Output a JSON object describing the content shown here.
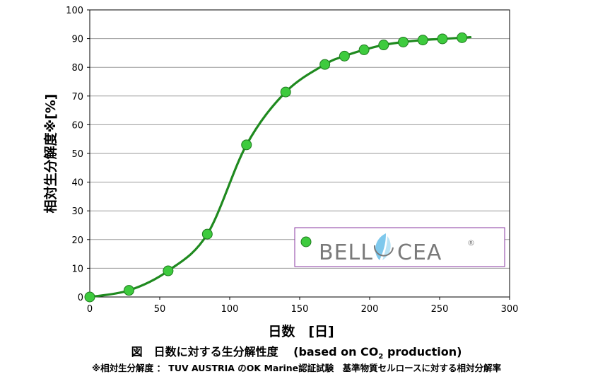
{
  "chart_data": {
    "type": "line",
    "xlabel": "日数　[日]",
    "ylabel": "相対生分解度※[%]",
    "xlim": [
      0,
      300
    ],
    "ylim": [
      0,
      100
    ],
    "xticks": [
      0,
      50,
      100,
      150,
      200,
      250,
      300
    ],
    "yticks": [
      0,
      10,
      20,
      30,
      40,
      50,
      60,
      70,
      80,
      90,
      100
    ],
    "grid": "horizontal",
    "legend_position": "bottom-right",
    "series": [
      {
        "name": "BELLOCEA",
        "color": "#1f8a1f",
        "marker_color": "#3ecb3e",
        "points": [
          {
            "x": 0,
            "y": 0
          },
          {
            "x": 28,
            "y": 2.3
          },
          {
            "x": 56,
            "y": 9.1
          },
          {
            "x": 84,
            "y": 21.9
          },
          {
            "x": 112,
            "y": 53
          },
          {
            "x": 140,
            "y": 71.4
          },
          {
            "x": 168,
            "y": 81
          },
          {
            "x": 182,
            "y": 83.9
          },
          {
            "x": 196,
            "y": 86.1
          },
          {
            "x": 210,
            "y": 87.8
          },
          {
            "x": 224,
            "y": 88.8
          },
          {
            "x": 238,
            "y": 89.5
          },
          {
            "x": 252,
            "y": 89.9
          },
          {
            "x": 266,
            "y": 90.3
          }
        ],
        "curve_end": {
          "x": 272,
          "y": 90.5
        }
      }
    ],
    "legend_registered_mark": "®"
  },
  "caption": {
    "title_prefix": "図　日数に対する生分解性度　 (based on CO",
    "title_sub": "2",
    "title_suffix": " production)",
    "note": "※相対生分解度 ： TUV AUSTRIA のOK Marine認証試験　基準物質セルロースに対する相対分解率"
  }
}
